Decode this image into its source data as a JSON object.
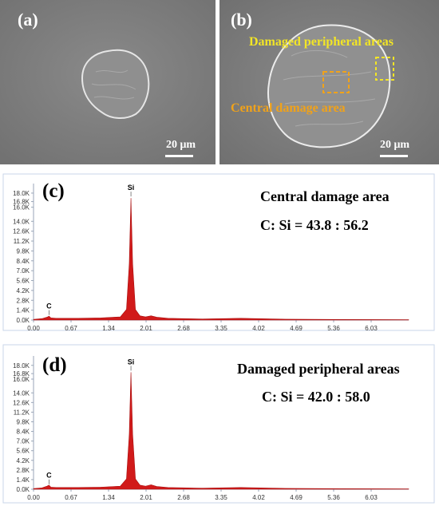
{
  "figure": {
    "panel_a": {
      "label": "(a)",
      "scale_text": "20 μm"
    },
    "panel_b": {
      "label": "(b)",
      "scale_text": "20 μm",
      "annotation_peripheral": "Damaged peripheral areas",
      "annotation_central": "Central damage area",
      "annotation_color": "#f2e526",
      "central_annotation_color": "#f0a21a"
    }
  },
  "chart_data": [
    {
      "type": "line",
      "panel_label": "(c)",
      "title": "Central damage area",
      "ratio_text": "C: Si = 43.8 : 56.2",
      "x_ticks": [
        "0.00",
        "0.67",
        "1.34",
        "2.01",
        "2.68",
        "3.35",
        "4.02",
        "4.69",
        "5.36",
        "6.03"
      ],
      "y_ticks": [
        "0.0K",
        "1.4K",
        "2.8K",
        "4.2K",
        "5.6K",
        "7.0K",
        "8.4K",
        "9.8K",
        "11.2K",
        "12.6K",
        "14.0K",
        "16.0K",
        "16.8K",
        "18.0K"
      ],
      "xlim": [
        0,
        6.7
      ],
      "ylim": [
        0,
        18.9
      ],
      "peaks": [
        {
          "element": "C",
          "x": 0.277,
          "y": 0.5
        },
        {
          "element": "Si",
          "x": 1.74,
          "y": 17.3
        }
      ],
      "spectrum_points": [
        [
          0,
          0.1
        ],
        [
          0.15,
          0.2
        ],
        [
          0.24,
          0.4
        ],
        [
          0.277,
          0.55
        ],
        [
          0.31,
          0.3
        ],
        [
          0.4,
          0.25
        ],
        [
          0.8,
          0.25
        ],
        [
          1.2,
          0.3
        ],
        [
          1.55,
          0.45
        ],
        [
          1.66,
          1.5
        ],
        [
          1.71,
          8.0
        ],
        [
          1.74,
          17.3
        ],
        [
          1.77,
          8.0
        ],
        [
          1.82,
          1.5
        ],
        [
          1.9,
          0.6
        ],
        [
          2.0,
          0.45
        ],
        [
          2.1,
          0.6
        ],
        [
          2.2,
          0.4
        ],
        [
          2.4,
          0.25
        ],
        [
          3.0,
          0.15
        ],
        [
          3.7,
          0.25
        ],
        [
          4.5,
          0.12
        ],
        [
          5.5,
          0.08
        ],
        [
          6.7,
          0.05
        ]
      ],
      "fill_color": "#d11a1a"
    },
    {
      "type": "line",
      "panel_label": "(d)",
      "title": "Damaged peripheral areas",
      "ratio_text": "C: Si = 42.0 : 58.0",
      "x_ticks": [
        "0.00",
        "0.67",
        "1.34",
        "2.01",
        "2.68",
        "3.35",
        "4.02",
        "4.69",
        "5.36",
        "6.03"
      ],
      "y_ticks": [
        "0.0K",
        "1.4K",
        "2.8K",
        "4.2K",
        "5.6K",
        "7.0K",
        "8.4K",
        "9.8K",
        "11.2K",
        "12.6K",
        "14.0K",
        "16.0K",
        "16.8K",
        "18.0K"
      ],
      "xlim": [
        0,
        6.7
      ],
      "ylim": [
        0,
        18.9
      ],
      "peaks": [
        {
          "element": "C",
          "x": 0.277,
          "y": 0.5
        },
        {
          "element": "Si",
          "x": 1.74,
          "y": 17.0
        }
      ],
      "spectrum_points": [
        [
          0,
          0.1
        ],
        [
          0.15,
          0.2
        ],
        [
          0.24,
          0.45
        ],
        [
          0.277,
          0.6
        ],
        [
          0.31,
          0.3
        ],
        [
          0.4,
          0.25
        ],
        [
          0.8,
          0.25
        ],
        [
          1.2,
          0.3
        ],
        [
          1.55,
          0.45
        ],
        [
          1.66,
          1.5
        ],
        [
          1.71,
          8.0
        ],
        [
          1.74,
          17.0
        ],
        [
          1.77,
          8.0
        ],
        [
          1.82,
          1.5
        ],
        [
          1.9,
          0.6
        ],
        [
          2.0,
          0.45
        ],
        [
          2.1,
          0.65
        ],
        [
          2.2,
          0.4
        ],
        [
          2.4,
          0.25
        ],
        [
          3.0,
          0.15
        ],
        [
          3.7,
          0.25
        ],
        [
          4.5,
          0.12
        ],
        [
          5.5,
          0.08
        ],
        [
          6.7,
          0.05
        ]
      ],
      "fill_color": "#d11a1a"
    }
  ]
}
